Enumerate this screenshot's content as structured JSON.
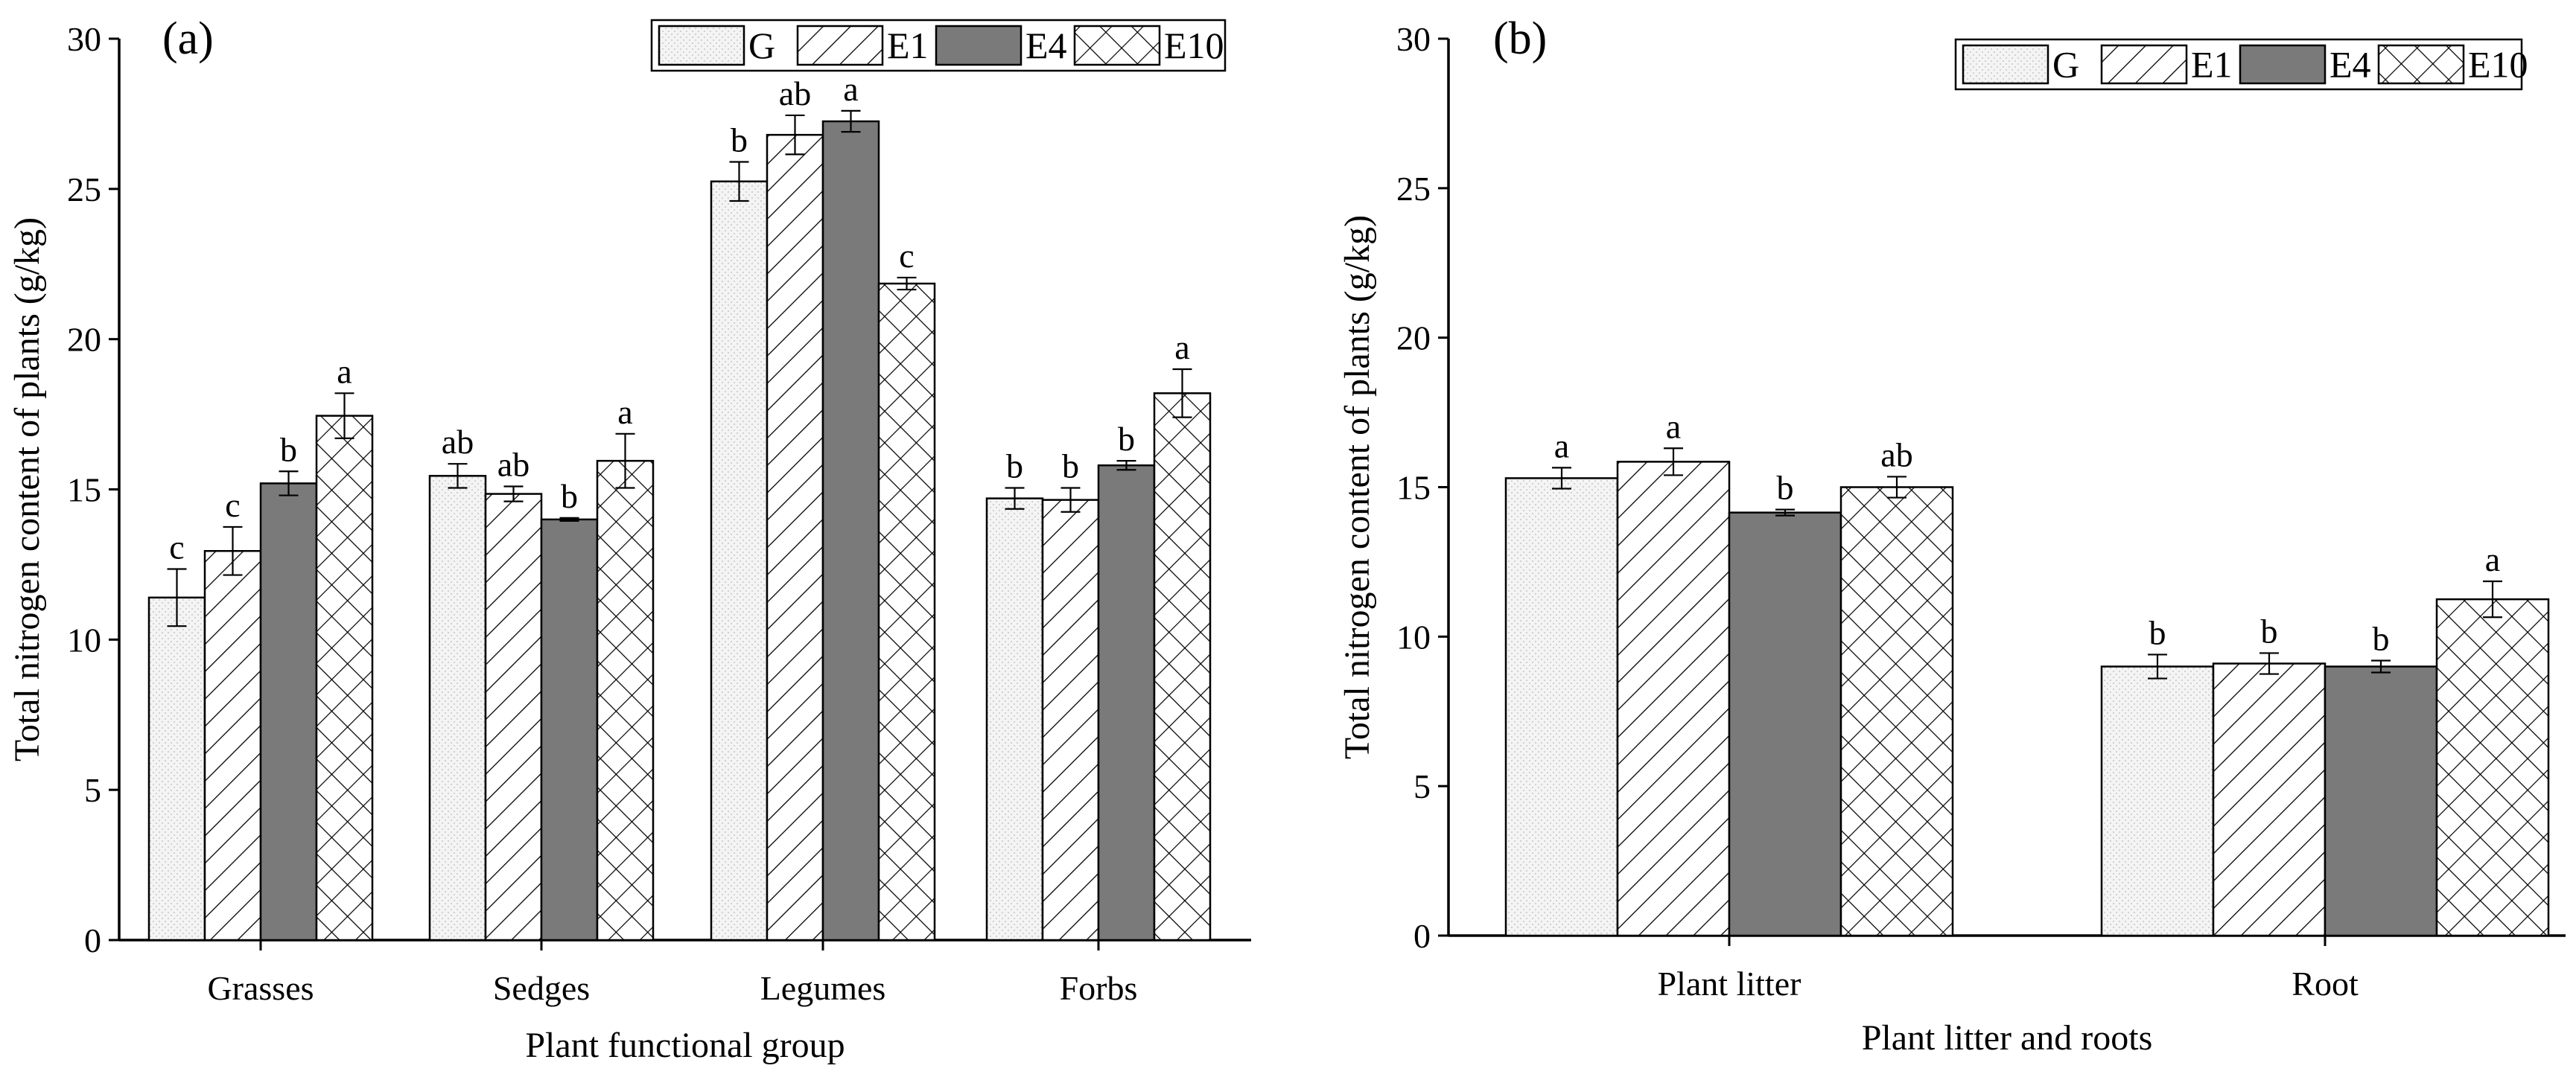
{
  "colors": {
    "G": "#f4f4f4",
    "E1": "#ffffff",
    "E4": "#7a7a7a",
    "E10": "#ffffff",
    "axis": "#000000",
    "bar_edge": "#000000"
  },
  "chart_data": [
    {
      "type": "bar",
      "panel_label": "(a)",
      "xlabel": "Plant functional group",
      "ylabel": "Total nitrogen content of plants (g/kg)",
      "ylim": [
        0,
        30
      ],
      "yticks": [
        0,
        5,
        10,
        15,
        20,
        25,
        30
      ],
      "legend_position": "top-right",
      "categories": [
        "Grasses",
        "Sedges",
        "Legumes",
        "Forbs"
      ],
      "series": [
        {
          "name": "G",
          "pattern": "dots",
          "values": [
            11.4,
            15.45,
            25.25,
            14.7
          ],
          "errors": [
            0.95,
            0.4,
            0.65,
            0.35
          ],
          "letters": [
            "c",
            "ab",
            "b",
            "b"
          ]
        },
        {
          "name": "E1",
          "pattern": "diagonal",
          "values": [
            12.95,
            14.85,
            26.8,
            14.65
          ],
          "errors": [
            0.8,
            0.25,
            0.65,
            0.4
          ],
          "letters": [
            "c",
            "ab",
            "ab",
            "b"
          ]
        },
        {
          "name": "E4",
          "pattern": "solid",
          "values": [
            15.2,
            14.0,
            27.25,
            15.8
          ],
          "errors": [
            0.4,
            0.05,
            0.35,
            0.15
          ],
          "letters": [
            "b",
            "b",
            "a",
            "b"
          ]
        },
        {
          "name": "E10",
          "pattern": "crosshatch",
          "values": [
            17.45,
            15.95,
            21.85,
            18.2
          ],
          "errors": [
            0.75,
            0.9,
            0.2,
            0.8
          ],
          "letters": [
            "a",
            "a",
            "c",
            "a"
          ]
        }
      ]
    },
    {
      "type": "bar",
      "panel_label": "(b)",
      "xlabel": "Plant litter and roots",
      "ylabel": "Total nitrogen content of plants (g/kg)",
      "ylim": [
        0,
        30
      ],
      "yticks": [
        0,
        5,
        10,
        15,
        20,
        25,
        30
      ],
      "legend_position": "top-right",
      "categories": [
        "Plant litter",
        "Root"
      ],
      "series": [
        {
          "name": "G",
          "pattern": "dots",
          "values": [
            15.3,
            9.0
          ],
          "errors": [
            0.35,
            0.4
          ],
          "letters": [
            "a",
            "b"
          ]
        },
        {
          "name": "E1",
          "pattern": "diagonal",
          "values": [
            15.85,
            9.1
          ],
          "errors": [
            0.45,
            0.35
          ],
          "letters": [
            "a",
            "b"
          ]
        },
        {
          "name": "E4",
          "pattern": "solid",
          "values": [
            14.15,
            9.0
          ],
          "errors": [
            0.1,
            0.2
          ],
          "letters": [
            "b",
            "b"
          ]
        },
        {
          "name": "E10",
          "pattern": "crosshatch",
          "values": [
            15.0,
            11.25
          ],
          "errors": [
            0.35,
            0.6
          ],
          "letters": [
            "ab",
            "a"
          ]
        }
      ]
    }
  ]
}
